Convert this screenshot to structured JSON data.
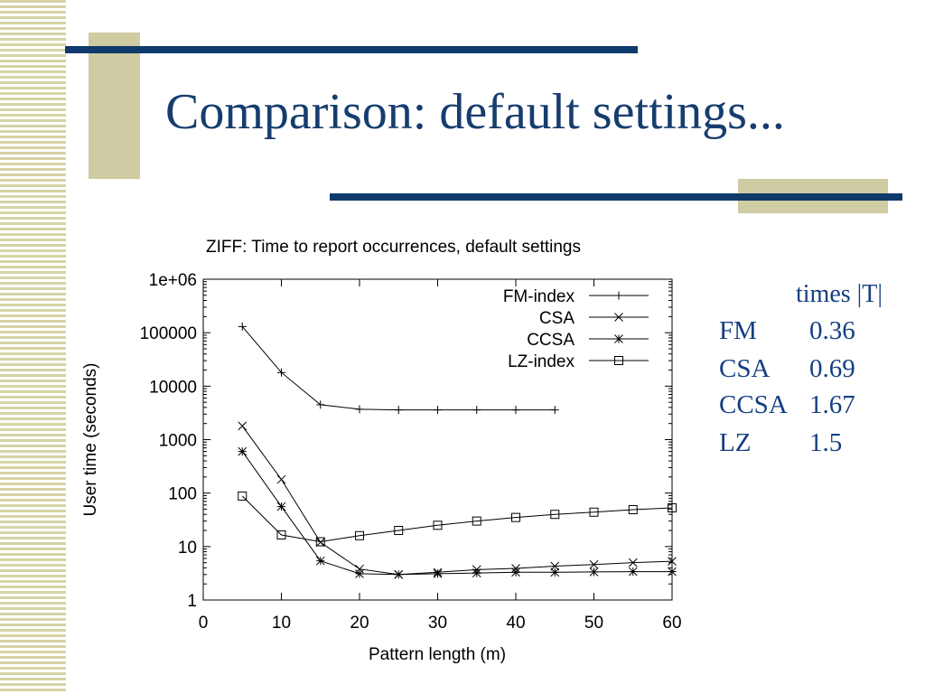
{
  "slide": {
    "title": "Comparison: default settings..."
  },
  "colors": {
    "accent": "#0f3a6b",
    "decor": "#cfcba2",
    "text": "#143f82"
  },
  "table": {
    "header": "times |T|",
    "rows": [
      {
        "method": "FM",
        "value": "0.36"
      },
      {
        "method": "CSA",
        "value": "0.69"
      },
      {
        "method": "CCSA",
        "value": "1.67"
      },
      {
        "method": "LZ",
        "value": "1.5"
      }
    ]
  },
  "chart_data": {
    "type": "line",
    "title": "ZIFF: Time to report occurrences, default settings",
    "xlabel": "Pattern length (m)",
    "ylabel": "User time (seconds)",
    "xlim": [
      0,
      60
    ],
    "ylim": [
      1,
      1000000
    ],
    "yscale": "log",
    "x_ticks": [
      0,
      10,
      20,
      30,
      40,
      50,
      60
    ],
    "y_ticks": [
      1,
      10,
      100,
      1000,
      10000,
      100000,
      1000000
    ],
    "y_tick_labels": [
      "1",
      "10",
      "100",
      "1000",
      "10000",
      "100000",
      "1e+06"
    ],
    "legend_position": "top-right",
    "series": [
      {
        "name": "FM-index",
        "marker": "plus",
        "x": [
          5,
          10,
          15,
          20,
          25,
          30,
          35,
          40,
          45
        ],
        "y": [
          130000,
          18000,
          4500,
          3700,
          3600,
          3600,
          3600,
          3600,
          3600
        ]
      },
      {
        "name": "CSA",
        "marker": "cross",
        "x": [
          5,
          10,
          15,
          20,
          25,
          30,
          35,
          40,
          45,
          50,
          55,
          60
        ],
        "y": [
          1800,
          180,
          12,
          3.8,
          3.0,
          3.3,
          3.7,
          3.9,
          4.3,
          4.6,
          5.0,
          5.3
        ]
      },
      {
        "name": "CCSA",
        "marker": "star",
        "x": [
          5,
          10,
          15,
          20,
          25,
          30,
          35,
          40,
          45,
          50,
          55,
          60
        ],
        "y": [
          600,
          56,
          5.4,
          3.1,
          3.0,
          3.1,
          3.2,
          3.3,
          3.3,
          3.35,
          3.4,
          3.4
        ]
      },
      {
        "name": "LZ-index",
        "marker": "square",
        "x": [
          5,
          10,
          15,
          20,
          25,
          30,
          35,
          40,
          45,
          50,
          55,
          60
        ],
        "y": [
          88,
          16.5,
          12.3,
          16,
          20,
          25,
          30,
          35,
          40,
          44,
          49,
          53
        ]
      }
    ]
  }
}
